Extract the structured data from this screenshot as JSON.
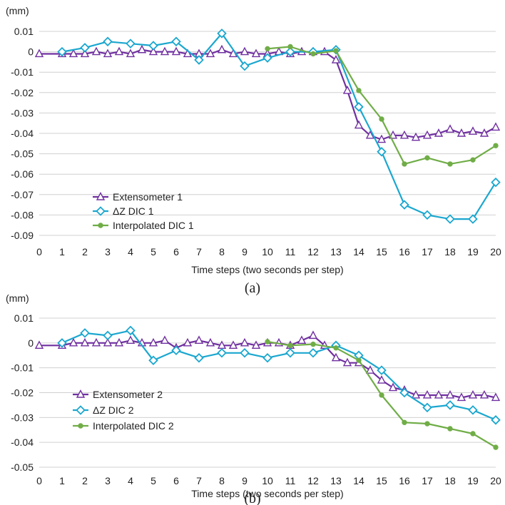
{
  "chart_data": [
    {
      "type": "line",
      "caption": "(a)",
      "unit_label": "(mm)",
      "xlabel": "Time steps (two seconds per step)",
      "ylabel": "",
      "xlim": [
        0,
        20
      ],
      "ylim": [
        -0.09,
        0.01
      ],
      "x_ticks": [
        0,
        1,
        2,
        3,
        4,
        5,
        6,
        7,
        8,
        9,
        10,
        11,
        12,
        13,
        14,
        15,
        16,
        17,
        18,
        19,
        20
      ],
      "y_ticks": [
        0.01,
        0,
        -0.01,
        -0.02,
        -0.03,
        -0.04,
        -0.05,
        -0.06,
        -0.07,
        -0.08,
        -0.09
      ],
      "y_tick_labels": [
        "0.01",
        "0",
        "-0.01",
        "-0.02",
        "-0.03",
        "-0.04",
        "-0.05",
        "-0.06",
        "-0.07",
        "-0.08",
        "-0.09"
      ],
      "grid": "horizontal",
      "legend_position": "lower-left",
      "series": [
        {
          "name": "Extensometer 1",
          "color": "#7030a0",
          "marker": "triangle",
          "x": [
            0,
            1,
            1.5,
            2,
            2.5,
            3,
            3.5,
            4,
            4.5,
            5,
            5.5,
            6,
            6.5,
            7,
            7.5,
            8,
            8.5,
            9,
            9.5,
            10,
            10.5,
            11,
            11.5,
            12,
            12.5,
            13,
            13.5,
            14,
            14.5,
            15,
            15.5,
            16,
            16.5,
            17,
            17.5,
            18,
            18.5,
            19,
            19.5,
            20
          ],
          "values": [
            -0.001,
            -0.001,
            -0.001,
            -0.001,
            0,
            -0.001,
            0,
            -0.001,
            0.001,
            0,
            0,
            0,
            -0.001,
            -0.001,
            -0.001,
            0.001,
            -0.001,
            0,
            -0.001,
            -0.001,
            0,
            -0.001,
            0,
            0,
            0,
            -0.004,
            -0.019,
            -0.036,
            -0.041,
            -0.043,
            -0.041,
            -0.041,
            -0.042,
            -0.041,
            -0.04,
            -0.038,
            -0.04,
            -0.039,
            -0.04,
            -0.037
          ]
        },
        {
          "name": "ΔZ DIC 1",
          "color": "#1ba7cf",
          "marker": "diamond",
          "x": [
            1,
            2,
            3,
            4,
            5,
            6,
            7,
            8,
            9,
            10,
            11,
            12,
            13,
            14,
            15,
            16,
            17,
            18,
            19,
            20
          ],
          "values": [
            0,
            0.002,
            0.005,
            0.004,
            0.003,
            0.005,
            -0.004,
            0.009,
            -0.007,
            -0.003,
            0,
            0,
            0.001,
            -0.027,
            -0.049,
            -0.075,
            -0.08,
            -0.082,
            -0.082,
            -0.064
          ]
        },
        {
          "name": "Interpolated DIC 1",
          "color": "#70ad47",
          "marker": "circle",
          "x": [
            10,
            11,
            12,
            13,
            14,
            15,
            16,
            17,
            18,
            19,
            20
          ],
          "values": [
            0.0015,
            0.0025,
            -0.001,
            0.0005,
            -0.019,
            -0.033,
            -0.055,
            -0.052,
            -0.055,
            -0.053,
            -0.046
          ]
        }
      ]
    },
    {
      "type": "line",
      "caption": "(b)",
      "unit_label": "(mm)",
      "xlabel": "Time steps (two seconds per step)",
      "ylabel": "",
      "xlim": [
        0,
        20
      ],
      "ylim": [
        -0.05,
        0.01
      ],
      "x_ticks": [
        0,
        1,
        2,
        3,
        4,
        5,
        6,
        7,
        8,
        9,
        10,
        11,
        12,
        13,
        14,
        15,
        16,
        17,
        18,
        19,
        20
      ],
      "y_ticks": [
        0.01,
        0,
        -0.01,
        -0.02,
        -0.03,
        -0.04,
        -0.05
      ],
      "y_tick_labels": [
        "0.01",
        "0",
        "-0.01",
        "-0.02",
        "-0.03",
        "-0.04",
        "-0.05"
      ],
      "grid": "horizontal",
      "legend_position": "lower-left",
      "series": [
        {
          "name": "Extensometer 2",
          "color": "#7030a0",
          "marker": "triangle",
          "x": [
            0,
            1,
            1.5,
            2,
            2.5,
            3,
            3.5,
            4,
            4.5,
            5,
            5.5,
            6,
            6.5,
            7,
            7.5,
            8,
            8.5,
            9,
            9.5,
            10,
            10.5,
            11,
            11.5,
            12,
            12.5,
            13,
            13.5,
            14,
            14.5,
            15,
            15.5,
            16,
            16.5,
            17,
            17.5,
            18,
            18.5,
            19,
            19.5,
            20
          ],
          "values": [
            -0.001,
            -0.001,
            0,
            0,
            0,
            0,
            0,
            0.001,
            0,
            0,
            0.001,
            -0.002,
            0,
            0.001,
            0,
            -0.001,
            -0.001,
            0,
            -0.001,
            0,
            0,
            -0.001,
            0.001,
            0.003,
            -0.001,
            -0.006,
            -0.008,
            -0.008,
            -0.011,
            -0.015,
            -0.018,
            -0.019,
            -0.021,
            -0.021,
            -0.021,
            -0.021,
            -0.022,
            -0.021,
            -0.021,
            -0.022
          ]
        },
        {
          "name": "ΔZ DIC 2",
          "color": "#1ba7cf",
          "marker": "diamond",
          "x": [
            1,
            2,
            3,
            4,
            5,
            6,
            7,
            8,
            9,
            10,
            11,
            12,
            13,
            14,
            15,
            16,
            17,
            18,
            19,
            20
          ],
          "values": [
            0,
            0.004,
            0.003,
            0.005,
            -0.007,
            -0.003,
            -0.006,
            -0.004,
            -0.004,
            -0.006,
            -0.004,
            -0.004,
            -0.001,
            -0.005,
            -0.011,
            -0.02,
            -0.026,
            -0.025,
            -0.027,
            -0.031
          ]
        },
        {
          "name": "Interpolated DIC 2",
          "color": "#70ad47",
          "marker": "circle",
          "x": [
            10,
            11,
            12,
            13,
            14,
            15,
            16,
            17,
            18,
            19,
            20
          ],
          "values": [
            0.0005,
            -0.001,
            -0.0005,
            -0.002,
            -0.007,
            -0.021,
            -0.032,
            -0.0325,
            -0.0345,
            -0.0365,
            -0.042
          ]
        }
      ]
    }
  ]
}
